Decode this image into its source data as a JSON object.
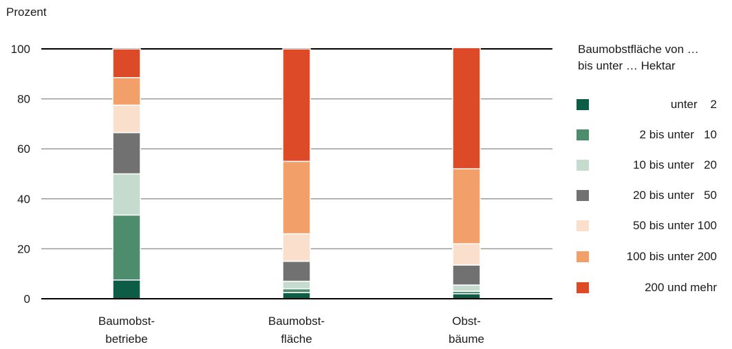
{
  "chart_data": {
    "type": "bar",
    "stacked": true,
    "ylabel": "Prozent",
    "ylim": [
      0,
      100
    ],
    "yticks": [
      "0",
      "20",
      "40",
      "60",
      "80",
      "100"
    ],
    "categories": [
      [
        "Baumobst-",
        "betriebe"
      ],
      [
        "Baumobst-",
        "fläche"
      ],
      [
        "Obst-",
        "bäume"
      ]
    ],
    "legend_title": [
      "Baumobstfläche von …",
      "bis unter … Hektar"
    ],
    "series": [
      {
        "name": "          unter    2",
        "color": "#0d5c45",
        "values": [
          7.5,
          2.5,
          2.0
        ]
      },
      {
        "name": "  2 bis unter   10",
        "color": "#4e8c6e",
        "values": [
          26,
          1.5,
          1.0
        ]
      },
      {
        "name": "10 bis unter   20",
        "color": "#c5dbcd",
        "values": [
          16.5,
          3.0,
          2.5
        ]
      },
      {
        "name": "20 bis unter   50",
        "color": "#717171",
        "values": [
          16.5,
          8.0,
          8.0
        ]
      },
      {
        "name": "50 bis unter 100",
        "color": "#fbdfcd",
        "values": [
          11,
          11,
          8.5
        ]
      },
      {
        "name": "100 bis unter 200",
        "color": "#f39f6a",
        "values": [
          11,
          29,
          30
        ]
      },
      {
        "name": "200 und mehr",
        "color": "#dc4a28",
        "values": [
          11.5,
          45,
          48.5
        ]
      }
    ],
    "grid": true,
    "legend_position": "right"
  }
}
